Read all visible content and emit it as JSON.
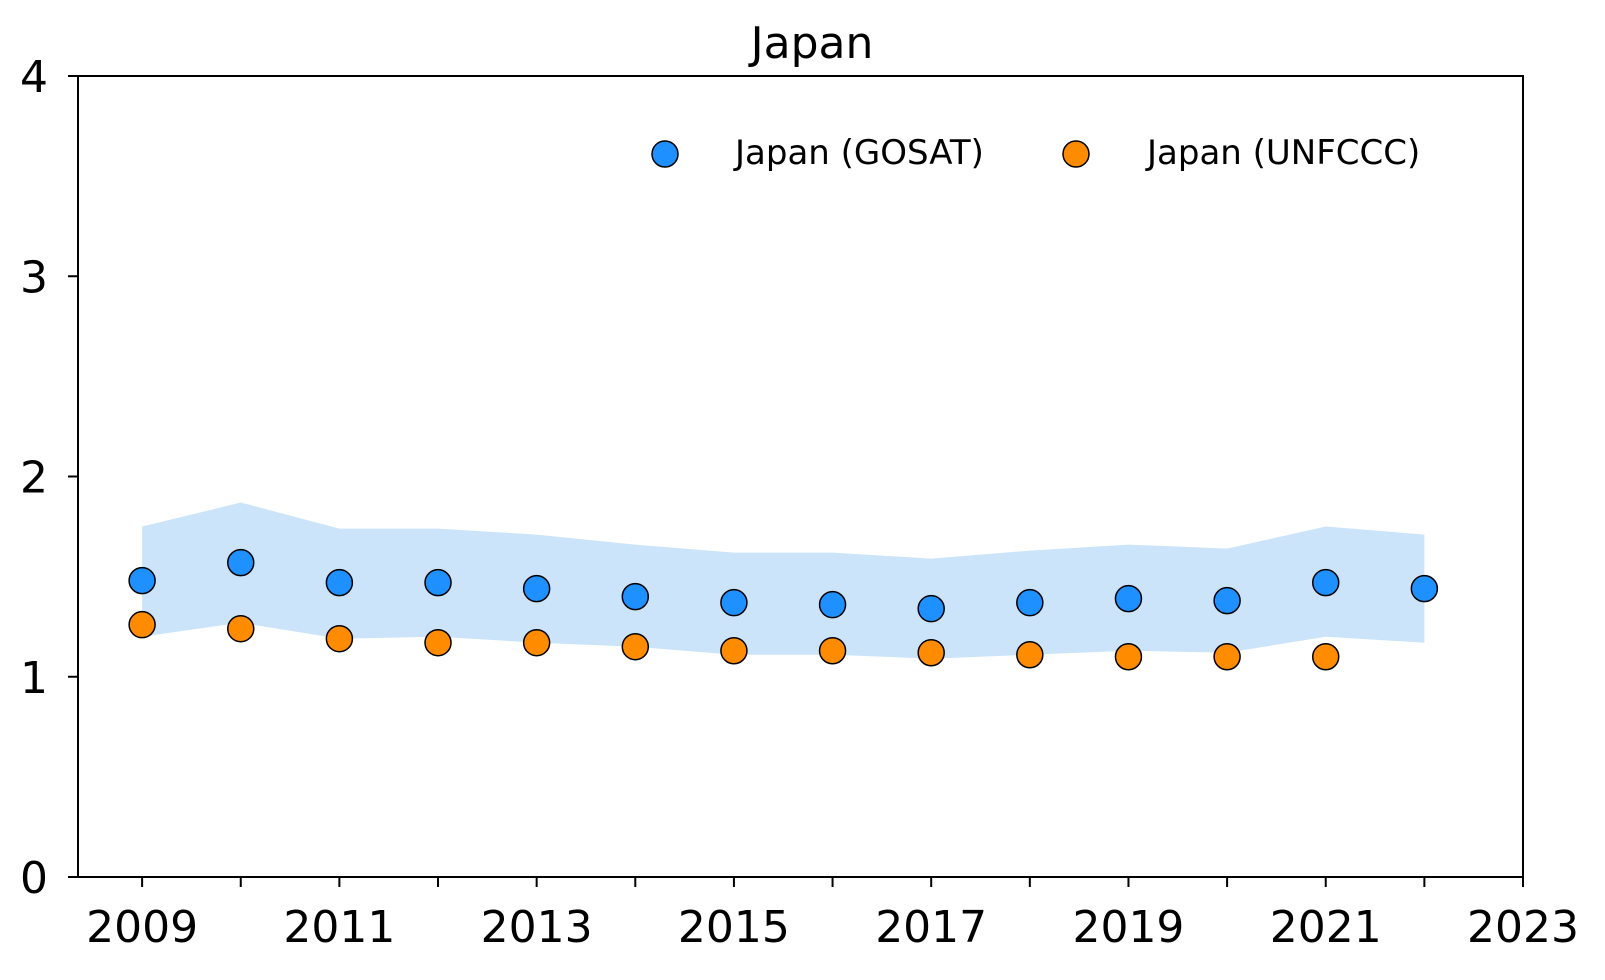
{
  "chart_data": {
    "type": "scatter",
    "title": "Japan",
    "xlabel": "",
    "ylabel": "",
    "xlim": [
      2008.35,
      2023
    ],
    "ylim": [
      0,
      4
    ],
    "x_ticks": [
      "2009",
      "2011",
      "2013",
      "2015",
      "2017",
      "2019",
      "2021",
      "2023"
    ],
    "x_tick_values": [
      2009,
      2011,
      2013,
      2015,
      2017,
      2019,
      2021,
      2023
    ],
    "x_minor_tick_values": [
      2010,
      2012,
      2014,
      2016,
      2018,
      2020,
      2022
    ],
    "y_ticks": [
      "0",
      "1",
      "2",
      "3",
      "4"
    ],
    "y_tick_values": [
      0,
      1,
      2,
      3,
      4
    ],
    "grid": false,
    "legend_position": "upper-right",
    "series": [
      {
        "name": "Japan (GOSAT)",
        "color": "#1e90ff",
        "x": [
          2009,
          2010,
          2011,
          2012,
          2013,
          2014,
          2015,
          2016,
          2017,
          2018,
          2019,
          2020,
          2021,
          2022
        ],
        "y": [
          1.48,
          1.57,
          1.47,
          1.47,
          1.44,
          1.4,
          1.37,
          1.36,
          1.34,
          1.37,
          1.39,
          1.38,
          1.47,
          1.44
        ]
      },
      {
        "name": "Japan (UNFCCC)",
        "color": "#ff8c00",
        "x": [
          2009,
          2010,
          2011,
          2012,
          2013,
          2014,
          2015,
          2016,
          2017,
          2018,
          2019,
          2020,
          2021
        ],
        "y": [
          1.26,
          1.24,
          1.19,
          1.17,
          1.17,
          1.15,
          1.13,
          1.13,
          1.12,
          1.11,
          1.1,
          1.1,
          1.1
        ]
      }
    ],
    "band": {
      "series": "Japan (GOSAT)",
      "color": "#cce4fa",
      "x": [
        2009,
        2010,
        2011,
        2012,
        2013,
        2014,
        2015,
        2016,
        2017,
        2018,
        2019,
        2020,
        2021,
        2022
      ],
      "upper": [
        1.75,
        1.87,
        1.74,
        1.74,
        1.71,
        1.66,
        1.62,
        1.62,
        1.59,
        1.63,
        1.66,
        1.64,
        1.75,
        1.71
      ],
      "lower": [
        1.2,
        1.27,
        1.19,
        1.2,
        1.17,
        1.15,
        1.11,
        1.11,
        1.09,
        1.11,
        1.13,
        1.12,
        1.2,
        1.17
      ]
    }
  }
}
